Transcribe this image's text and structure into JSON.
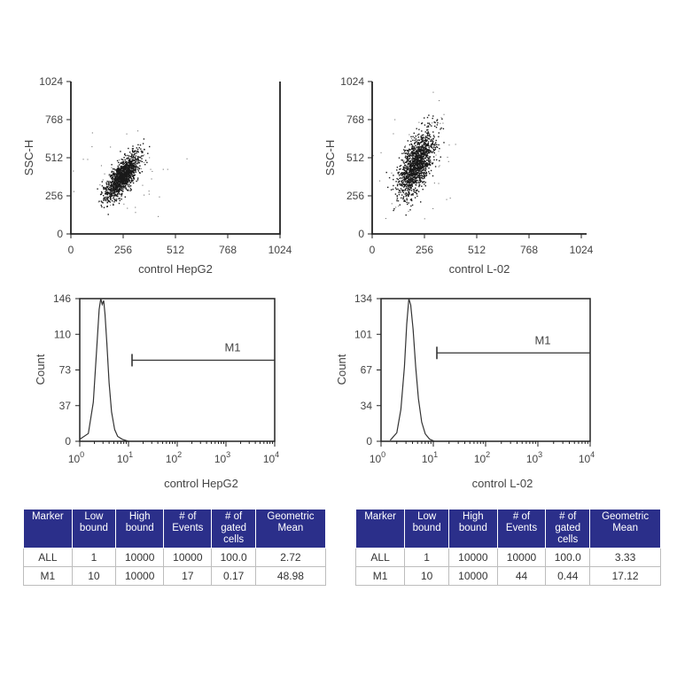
{
  "chart_data": [
    {
      "type": "scatter",
      "title": "",
      "xlabel": "control HepG2",
      "ylabel": "SSC-H",
      "xlim": [
        0,
        1024
      ],
      "ylim": [
        0,
        1024
      ],
      "xticks": [
        "0",
        "256",
        "512",
        "768",
        "1024"
      ],
      "yticks": [
        "0",
        "256",
        "512",
        "768",
        "1024"
      ],
      "cluster": {
        "center_x": 250,
        "center_y": 390,
        "spread_x": 40,
        "spread_y": 75,
        "correlation": 0.75
      }
    },
    {
      "type": "scatter",
      "title": "",
      "xlabel": "control L-02",
      "ylabel": "SSC-H",
      "xlim": [
        0,
        1024
      ],
      "ylim": [
        0,
        1024
      ],
      "xticks": [
        "0",
        "256",
        "512",
        "768",
        "1024"
      ],
      "yticks": [
        "0",
        "256",
        "512",
        "768",
        "1024"
      ],
      "cluster": {
        "center_x": 215,
        "center_y": 475,
        "spread_x": 45,
        "spread_y": 110,
        "correlation": 0.6
      }
    },
    {
      "type": "line",
      "title": "",
      "xlabel": "control HepG2",
      "ylabel": "Count",
      "x_scale": "log",
      "xlim": [
        1,
        10000
      ],
      "ylim": [
        0,
        146
      ],
      "yticks": [
        "0",
        "37",
        "73",
        "110",
        "146"
      ],
      "xticks": [
        {
          "base": "10",
          "exp": "0"
        },
        {
          "base": "10",
          "exp": "1"
        },
        {
          "base": "10",
          "exp": "2"
        },
        {
          "base": "10",
          "exp": "3"
        },
        {
          "base": "10",
          "exp": "4"
        }
      ],
      "series": [
        {
          "x": [
            1.0,
            1.5,
            1.9,
            2.2,
            2.5,
            2.7,
            2.9,
            3.1,
            3.3,
            3.6,
            4.0,
            4.5,
            5.2,
            6.0,
            7.5,
            10
          ],
          "y": [
            2,
            8,
            40,
            90,
            135,
            146,
            140,
            144,
            130,
            100,
            60,
            30,
            12,
            5,
            2,
            0
          ]
        }
      ],
      "marker": {
        "label": "M1",
        "from": 10,
        "to": 10000,
        "y": 83
      }
    },
    {
      "type": "line",
      "title": "",
      "xlabel": "control L-02",
      "ylabel": "Count",
      "x_scale": "log",
      "xlim": [
        1,
        10000
      ],
      "ylim": [
        0,
        134
      ],
      "yticks": [
        "0",
        "34",
        "67",
        "101",
        "134"
      ],
      "xticks": [
        {
          "base": "10",
          "exp": "0"
        },
        {
          "base": "10",
          "exp": "1"
        },
        {
          "base": "10",
          "exp": "2"
        },
        {
          "base": "10",
          "exp": "3"
        },
        {
          "base": "10",
          "exp": "4"
        }
      ],
      "series": [
        {
          "x": [
            1.5,
            2.0,
            2.4,
            2.8,
            3.1,
            3.4,
            3.7,
            4.1,
            4.6,
            5.2,
            6.0,
            7.0,
            8.5,
            10.5
          ],
          "y": [
            1,
            8,
            30,
            70,
            110,
            134,
            128,
            105,
            70,
            40,
            18,
            7,
            2,
            0
          ]
        }
      ],
      "marker": {
        "label": "M1",
        "from": 10,
        "to": 10000,
        "y": 83
      }
    }
  ],
  "tables": [
    {
      "headers": [
        [
          "Marker"
        ],
        [
          "Low",
          "bound"
        ],
        [
          "High",
          "bound"
        ],
        [
          "# of",
          "Events"
        ],
        [
          "# of",
          "gated",
          "cells"
        ],
        [
          "Geometric",
          "Mean"
        ]
      ],
      "rows": [
        [
          "ALL",
          "1",
          "10000",
          "10000",
          "100.0",
          "2.72"
        ],
        [
          "M1",
          "10",
          "10000",
          "17",
          "0.17",
          "48.98"
        ]
      ]
    },
    {
      "headers": [
        [
          "Marker"
        ],
        [
          "Low",
          "bound"
        ],
        [
          "High",
          "bound"
        ],
        [
          "# of",
          "Events"
        ],
        [
          "# of",
          "gated",
          "cells"
        ],
        [
          "Geometric",
          "Mean"
        ]
      ],
      "rows": [
        [
          "ALL",
          "1",
          "10000",
          "10000",
          "100.0",
          "3.33"
        ],
        [
          "M1",
          "10",
          "10000",
          "44",
          "0.44",
          "17.12"
        ]
      ]
    }
  ],
  "colors": {
    "axis": "#222222",
    "dots": "#1a1a1a",
    "table_header": "#2b2f8a"
  }
}
